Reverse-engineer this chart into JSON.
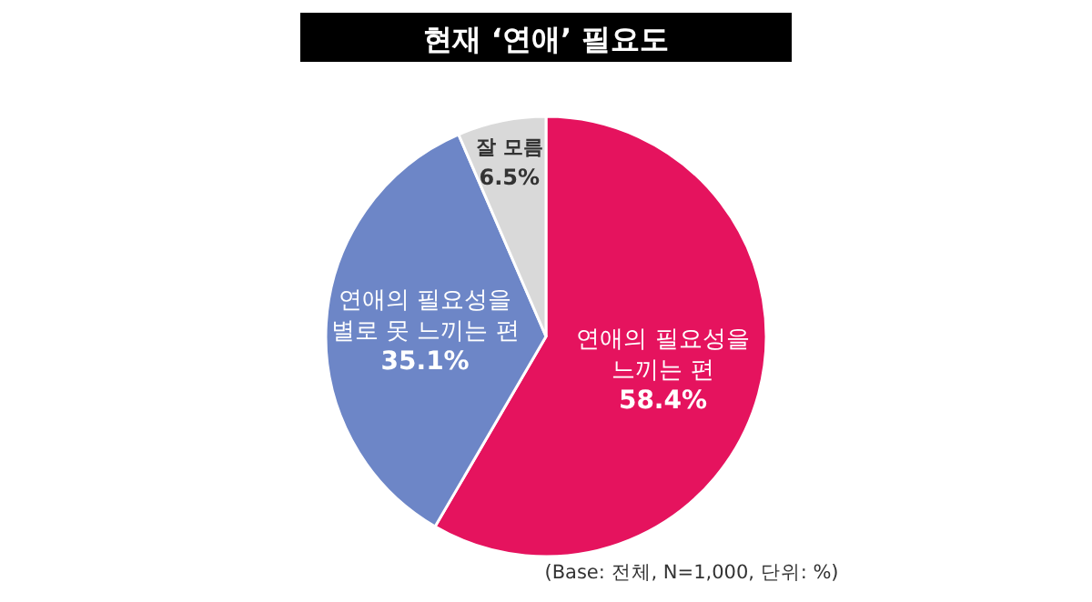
{
  "chart_data": {
    "type": "pie",
    "title": "현재 ‘연애’ 필요도",
    "categories": [
      "연애의 필요성을\n느끼는 편",
      "연애의 필요성을\n별로 못 느끼는 편",
      "잘 모름"
    ],
    "values": [
      58.4,
      35.1,
      6.5
    ],
    "colors": [
      "#e5135e",
      "#6d86c7",
      "#d9d9d9"
    ],
    "value_labels": [
      "58.4%",
      "35.1%",
      "6.5%"
    ],
    "annotations": [
      "(Base: 전체, N=1,000, 단위: %)"
    ]
  }
}
